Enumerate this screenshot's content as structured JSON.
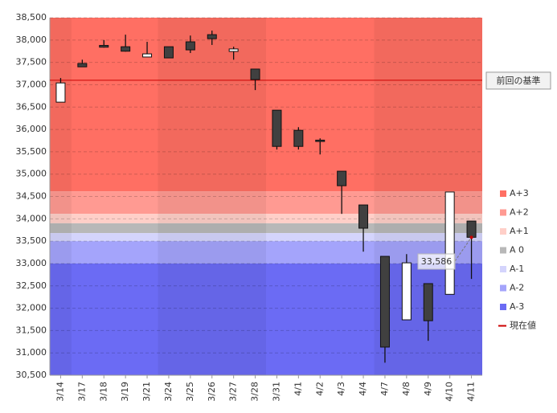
{
  "chart_data": {
    "type": "candlestick",
    "categories": [
      "3/14",
      "3/17",
      "3/18",
      "3/19",
      "3/21",
      "3/24",
      "3/25",
      "3/26",
      "3/27",
      "3/28",
      "3/31",
      "4/1",
      "4/2",
      "4/3",
      "4/4",
      "4/7",
      "4/8",
      "4/9",
      "4/10",
      "4/11"
    ],
    "open": [
      36610,
      37475,
      37880,
      37850,
      37620,
      37850,
      37960,
      38120,
      37745,
      37350,
      36430,
      35980,
      35760,
      35065,
      34310,
      33160,
      31740,
      32550,
      32310,
      33950
    ],
    "high": [
      37150,
      37560,
      38000,
      38120,
      37960,
      37850,
      38100,
      38210,
      37850,
      37350,
      36430,
      36050,
      35800,
      35065,
      34310,
      33160,
      33210,
      32550,
      34600,
      33950
    ],
    "low": [
      36610,
      37400,
      37830,
      37740,
      37620,
      37600,
      37710,
      37890,
      37560,
      36880,
      35550,
      35550,
      35440,
      34110,
      33265,
      30780,
      31740,
      31270,
      32310,
      32655
    ],
    "close": [
      37040,
      37400,
      37840,
      37750,
      37690,
      37600,
      37780,
      38030,
      37800,
      37115,
      35620,
      35620,
      35730,
      34740,
      33790,
      31130,
      33015,
      31720,
      34600,
      33586
    ],
    "up_color": "#ffffff",
    "down_color": "#404040",
    "bands": [
      {
        "name": "A+3",
        "color": "#ff6f63",
        "from": 34615,
        "to": 38500
      },
      {
        "name": "A+2",
        "color": "#ff9a92",
        "from": 34110,
        "to": 34615
      },
      {
        "name": "A+1",
        "color": "#ffcfc8",
        "from": 33900,
        "to": 34110
      },
      {
        "name": "A 0",
        "color": "#b8b8b8",
        "from": 33680,
        "to": 33900
      },
      {
        "name": "A-1",
        "color": "#d4d4fc",
        "from": 33500,
        "to": 33680
      },
      {
        "name": "A-2",
        "color": "#a4a4fb",
        "from": 33000,
        "to": 33500
      },
      {
        "name": "A-3",
        "color": "#6b6bf4",
        "from": 30500,
        "to": 33000
      }
    ],
    "reference": {
      "label": "前回の基準",
      "value": 37100,
      "color": "#cc0000"
    },
    "current": {
      "name": "現在値",
      "value": 33586,
      "label": "33,586",
      "color": "#cc0000"
    },
    "ylim": [
      30500,
      38500
    ],
    "yticks": [
      {
        "value": 30500,
        "label": "30,500"
      },
      {
        "value": 31000,
        "label": "31,000"
      },
      {
        "value": 31500,
        "label": "31,500"
      },
      {
        "value": 32000,
        "label": "32,000"
      },
      {
        "value": 32500,
        "label": "32,500"
      },
      {
        "value": 33000,
        "label": "33,000"
      },
      {
        "value": 33500,
        "label": "33,500"
      },
      {
        "value": 34000,
        "label": "34,000"
      },
      {
        "value": 34500,
        "label": "34,500"
      },
      {
        "value": 35000,
        "label": "35,000"
      },
      {
        "value": 35500,
        "label": "35,500"
      },
      {
        "value": 36000,
        "label": "36,000"
      },
      {
        "value": 36500,
        "label": "36,500"
      },
      {
        "value": 37000,
        "label": "37,000"
      },
      {
        "value": 37500,
        "label": "37,500"
      },
      {
        "value": 38000,
        "label": "38,000"
      },
      {
        "value": 38500,
        "label": "38,500"
      }
    ],
    "grid": true
  }
}
